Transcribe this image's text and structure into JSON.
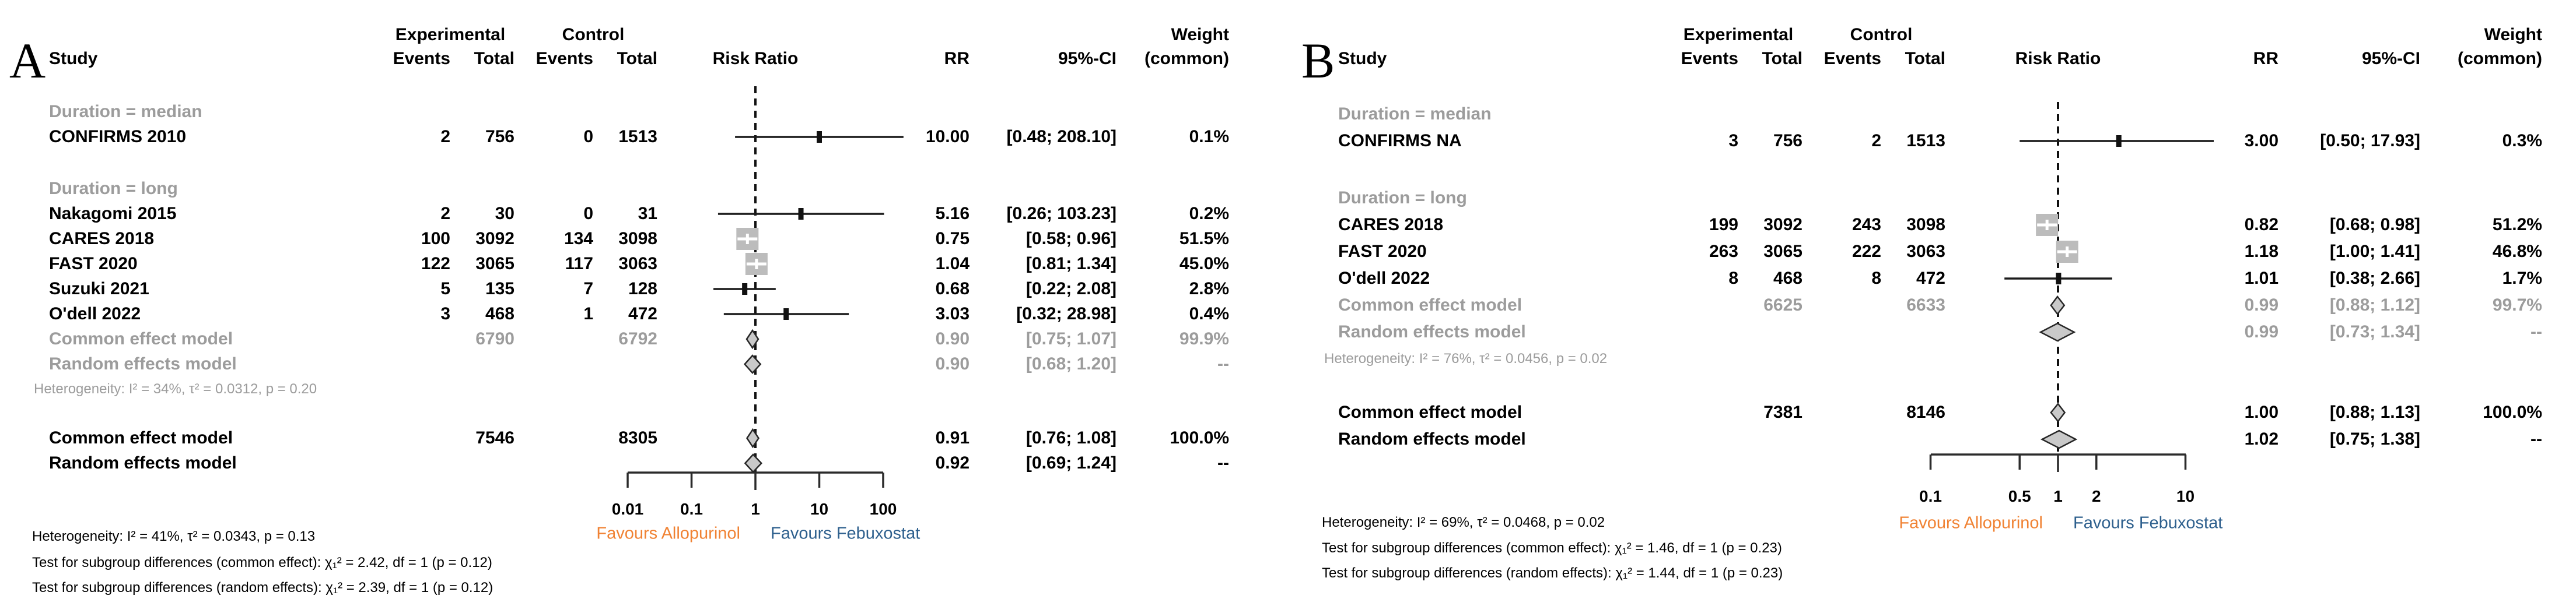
{
  "figure_title": "Forest plots of risk ratio comparing Febuxostat (experimental) vs Allopurinol (control)",
  "colors": {
    "favours_left": "#F08233",
    "favours_right": "#2D5F8D",
    "gray_text": "#9C9C9C",
    "square_fill": "#BCBCBC",
    "diamond_fill": "#C9C9C9",
    "line": "#1C1C1C"
  },
  "chart_data": [
    {
      "panel_label": "A",
      "type": "forest",
      "effect_measure": "Risk Ratio",
      "header": {
        "study": "Study",
        "experimental": "Experimental",
        "control": "Control",
        "events": "Events",
        "total": "Total",
        "plot": "Risk Ratio",
        "rr": "RR",
        "ci": "95%-CI",
        "weight_top": "Weight",
        "weight_bottom": "(common)"
      },
      "axis": {
        "scale": "log",
        "ticks": [
          "0.01",
          "0.1",
          "1",
          "10",
          "100"
        ],
        "min": 0.01,
        "max": 100
      },
      "favours_left": "Favours Allopurinol",
      "favours_right": "Favours Febuxostat",
      "rows": [
        {
          "kind": "group",
          "label": "Duration = median"
        },
        {
          "kind": "study",
          "label": "CONFIRMS 2010",
          "exp_events": "2",
          "exp_total": "756",
          "ctrl_events": "0",
          "ctrl_total": "1513",
          "rr": 10.0,
          "ci_low": 0.48,
          "ci_high": 208.1,
          "rr_text": "10.00",
          "ci_text": "[0.48; 208.10]",
          "weight": "0.1%",
          "weight_pct": 0.1
        },
        {
          "kind": "gap"
        },
        {
          "kind": "group",
          "label": "Duration = long"
        },
        {
          "kind": "study",
          "label": "Nakagomi 2015",
          "exp_events": "2",
          "exp_total": "30",
          "ctrl_events": "0",
          "ctrl_total": "31",
          "rr": 5.16,
          "ci_low": 0.26,
          "ci_high": 103.23,
          "rr_text": "5.16",
          "ci_text": "[0.26; 103.23]",
          "weight": "0.2%",
          "weight_pct": 0.2
        },
        {
          "kind": "study",
          "label": "CARES 2018",
          "exp_events": "100",
          "exp_total": "3092",
          "ctrl_events": "134",
          "ctrl_total": "3098",
          "rr": 0.75,
          "ci_low": 0.58,
          "ci_high": 0.96,
          "rr_text": "0.75",
          "ci_text": "[0.58; 0.96]",
          "weight": "51.5%",
          "weight_pct": 51.5
        },
        {
          "kind": "study",
          "label": "FAST 2020",
          "exp_events": "122",
          "exp_total": "3065",
          "ctrl_events": "117",
          "ctrl_total": "3063",
          "rr": 1.04,
          "ci_low": 0.81,
          "ci_high": 1.34,
          "rr_text": "1.04",
          "ci_text": "[0.81; 1.34]",
          "weight": "45.0%",
          "weight_pct": 45.0
        },
        {
          "kind": "study",
          "label": "Suzuki 2021",
          "exp_events": "5",
          "exp_total": "135",
          "ctrl_events": "7",
          "ctrl_total": "128",
          "rr": 0.68,
          "ci_low": 0.22,
          "ci_high": 2.08,
          "rr_text": "0.68",
          "ci_text": "[0.22; 2.08]",
          "weight": "2.8%",
          "weight_pct": 2.8
        },
        {
          "kind": "study",
          "label": "O'dell 2022",
          "exp_events": "3",
          "exp_total": "468",
          "ctrl_events": "1",
          "ctrl_total": "472",
          "rr": 3.03,
          "ci_low": 0.32,
          "ci_high": 28.98,
          "rr_text": "3.03",
          "ci_text": "[0.32; 28.98]",
          "weight": "0.4%",
          "weight_pct": 0.4
        },
        {
          "kind": "pooled",
          "style": "subgroup",
          "diamond": "common",
          "label": "Common effect model",
          "exp_total": "6790",
          "ctrl_total": "6792",
          "rr": 0.9,
          "ci_low": 0.75,
          "ci_high": 1.07,
          "rr_text": "0.90",
          "ci_text": "[0.75; 1.07]",
          "weight": "99.9%"
        },
        {
          "kind": "pooled",
          "style": "subgroup",
          "diamond": "random",
          "label": "Random effects model",
          "rr": 0.9,
          "ci_low": 0.68,
          "ci_high": 1.2,
          "rr_text": "0.90",
          "ci_text": "[0.68; 1.20]",
          "weight": "--"
        },
        {
          "kind": "note",
          "label": "Heterogeneity: I² = 34%, τ² = 0.0312, p = 0.20"
        },
        {
          "kind": "gap"
        },
        {
          "kind": "pooled",
          "style": "overall",
          "diamond": "common",
          "label": "Common effect model",
          "exp_total": "7546",
          "ctrl_total": "8305",
          "rr": 0.91,
          "ci_low": 0.76,
          "ci_high": 1.08,
          "rr_text": "0.91",
          "ci_text": "[0.76; 1.08]",
          "weight": "100.0%"
        },
        {
          "kind": "pooled",
          "style": "overall",
          "diamond": "random",
          "label": "Random effects model",
          "rr": 0.92,
          "ci_low": 0.69,
          "ci_high": 1.24,
          "rr_text": "0.92",
          "ci_text": "[0.69; 1.24]",
          "weight": "--"
        }
      ],
      "footnotes": [
        "Heterogeneity: I² = 41%, τ² = 0.0343, p = 0.13",
        "Test for subgroup differences (common effect): χ₁² = 2.42, df = 1 (p = 0.12)",
        "Test for subgroup differences (random effects): χ₁² = 2.39, df = 1 (p = 0.12)"
      ]
    },
    {
      "panel_label": "B",
      "type": "forest",
      "effect_measure": "Risk Ratio",
      "header": {
        "study": "Study",
        "experimental": "Experimental",
        "control": "Control",
        "events": "Events",
        "total": "Total",
        "plot": "Risk Ratio",
        "rr": "RR",
        "ci": "95%-CI",
        "weight_top": "Weight",
        "weight_bottom": "(common)"
      },
      "axis": {
        "scale": "log",
        "ticks": [
          "0.1",
          "0.5",
          "1",
          "2",
          "10"
        ],
        "min": 0.1,
        "max": 10
      },
      "favours_left": "Favours Allopurinol",
      "favours_right": "Favours Febuxostat",
      "rows": [
        {
          "kind": "group",
          "label": "Duration = median"
        },
        {
          "kind": "study",
          "label": "CONFIRMS NA",
          "exp_events": "3",
          "exp_total": "756",
          "ctrl_events": "2",
          "ctrl_total": "1513",
          "rr": 3.0,
          "ci_low": 0.5,
          "ci_high": 17.93,
          "rr_text": "3.00",
          "ci_text": "[0.50; 17.93]",
          "weight": "0.3%",
          "weight_pct": 0.3
        },
        {
          "kind": "gap"
        },
        {
          "kind": "group",
          "label": "Duration = long"
        },
        {
          "kind": "study",
          "label": "CARES 2018",
          "exp_events": "199",
          "exp_total": "3092",
          "ctrl_events": "243",
          "ctrl_total": "3098",
          "rr": 0.82,
          "ci_low": 0.68,
          "ci_high": 0.98,
          "rr_text": "0.82",
          "ci_text": "[0.68; 0.98]",
          "weight": "51.2%",
          "weight_pct": 51.2
        },
        {
          "kind": "study",
          "label": "FAST 2020",
          "exp_events": "263",
          "exp_total": "3065",
          "ctrl_events": "222",
          "ctrl_total": "3063",
          "rr": 1.18,
          "ci_low": 1.0,
          "ci_high": 1.41,
          "rr_text": "1.18",
          "ci_text": "[1.00; 1.41]",
          "weight": "46.8%",
          "weight_pct": 46.8
        },
        {
          "kind": "study",
          "label": "O'dell 2022",
          "exp_events": "8",
          "exp_total": "468",
          "ctrl_events": "8",
          "ctrl_total": "472",
          "rr": 1.01,
          "ci_low": 0.38,
          "ci_high": 2.66,
          "rr_text": "1.01",
          "ci_text": "[0.38; 2.66]",
          "weight": "1.7%",
          "weight_pct": 1.7
        },
        {
          "kind": "pooled",
          "style": "subgroup",
          "diamond": "common",
          "label": "Common effect model",
          "exp_total": "6625",
          "ctrl_total": "6633",
          "rr": 0.99,
          "ci_low": 0.88,
          "ci_high": 1.12,
          "rr_text": "0.99",
          "ci_text": "[0.88; 1.12]",
          "weight": "99.7%"
        },
        {
          "kind": "pooled",
          "style": "subgroup",
          "diamond": "random",
          "label": "Random effects model",
          "rr": 0.99,
          "ci_low": 0.73,
          "ci_high": 1.34,
          "rr_text": "0.99",
          "ci_text": "[0.73; 1.34]",
          "weight": "--"
        },
        {
          "kind": "note",
          "label": "Heterogeneity: I² = 76%, τ² = 0.0456, p = 0.02"
        },
        {
          "kind": "gap"
        },
        {
          "kind": "pooled",
          "style": "overall",
          "diamond": "common",
          "label": "Common effect model",
          "exp_total": "7381",
          "ctrl_total": "8146",
          "rr": 1.0,
          "ci_low": 0.88,
          "ci_high": 1.13,
          "rr_text": "1.00",
          "ci_text": "[0.88; 1.13]",
          "weight": "100.0%"
        },
        {
          "kind": "pooled",
          "style": "overall",
          "diamond": "random",
          "label": "Random effects model",
          "rr": 1.02,
          "ci_low": 0.75,
          "ci_high": 1.38,
          "rr_text": "1.02",
          "ci_text": "[0.75; 1.38]",
          "weight": "--"
        }
      ],
      "footnotes": [
        "Heterogeneity: I² = 69%, τ² = 0.0468, p = 0.02",
        "Test for subgroup differences (common effect): χ₁² = 1.46, df = 1 (p = 0.23)",
        "Test for subgroup differences (random effects): χ₁² = 1.44, df = 1 (p = 0.23)"
      ]
    }
  ]
}
